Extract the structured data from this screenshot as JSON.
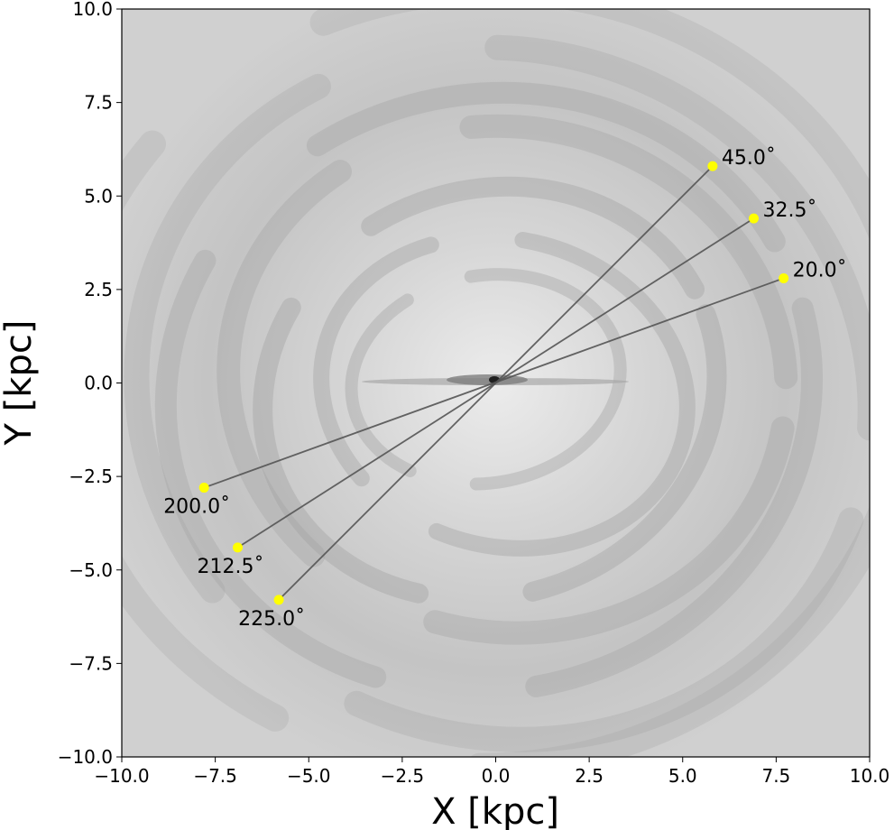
{
  "chart_data": {
    "type": "scatter",
    "title": "",
    "xlabel": "X [kpc]",
    "ylabel": "Y [kpc]",
    "xlim": [
      -10.0,
      10.0
    ],
    "ylim": [
      -10.0,
      10.0
    ],
    "xticks": [
      "−10.0",
      "−7.5",
      "−5.0",
      "−2.5",
      "0.0",
      "2.5",
      "5.0",
      "7.5",
      "10.0"
    ],
    "yticks": [
      "−10.0",
      "−7.5",
      "−5.0",
      "−2.5",
      "0.0",
      "2.5",
      "5.0",
      "7.5",
      "10.0"
    ],
    "xtick_values": [
      -10,
      -7.5,
      -5,
      -2.5,
      0,
      2.5,
      5,
      7.5,
      10
    ],
    "ytick_values": [
      -10,
      -7.5,
      -5,
      -2.5,
      0,
      2.5,
      5,
      7.5,
      10
    ],
    "grid": false,
    "background": "grayscale gas density map of a galactic disk with spiral structure",
    "marker_color": "#ffff00",
    "line_color": "#555555",
    "points": [
      {
        "label": "45.0˚",
        "x": 5.8,
        "y": 5.8
      },
      {
        "label": "32.5˚",
        "x": 6.9,
        "y": 4.4
      },
      {
        "label": "20.0˚",
        "x": 7.7,
        "y": 2.8
      },
      {
        "label": "200.0˚",
        "x": -7.8,
        "y": -2.8
      },
      {
        "label": "212.5˚",
        "x": -6.9,
        "y": -4.4
      },
      {
        "label": "225.0˚",
        "x": -5.8,
        "y": -5.8
      }
    ],
    "lines": [
      {
        "from": [
          -7.8,
          -2.8
        ],
        "to": [
          7.7,
          2.8
        ]
      },
      {
        "from": [
          -6.9,
          -4.4
        ],
        "to": [
          6.9,
          4.4
        ]
      },
      {
        "from": [
          -5.8,
          -5.8
        ],
        "to": [
          5.8,
          5.8
        ]
      }
    ]
  }
}
